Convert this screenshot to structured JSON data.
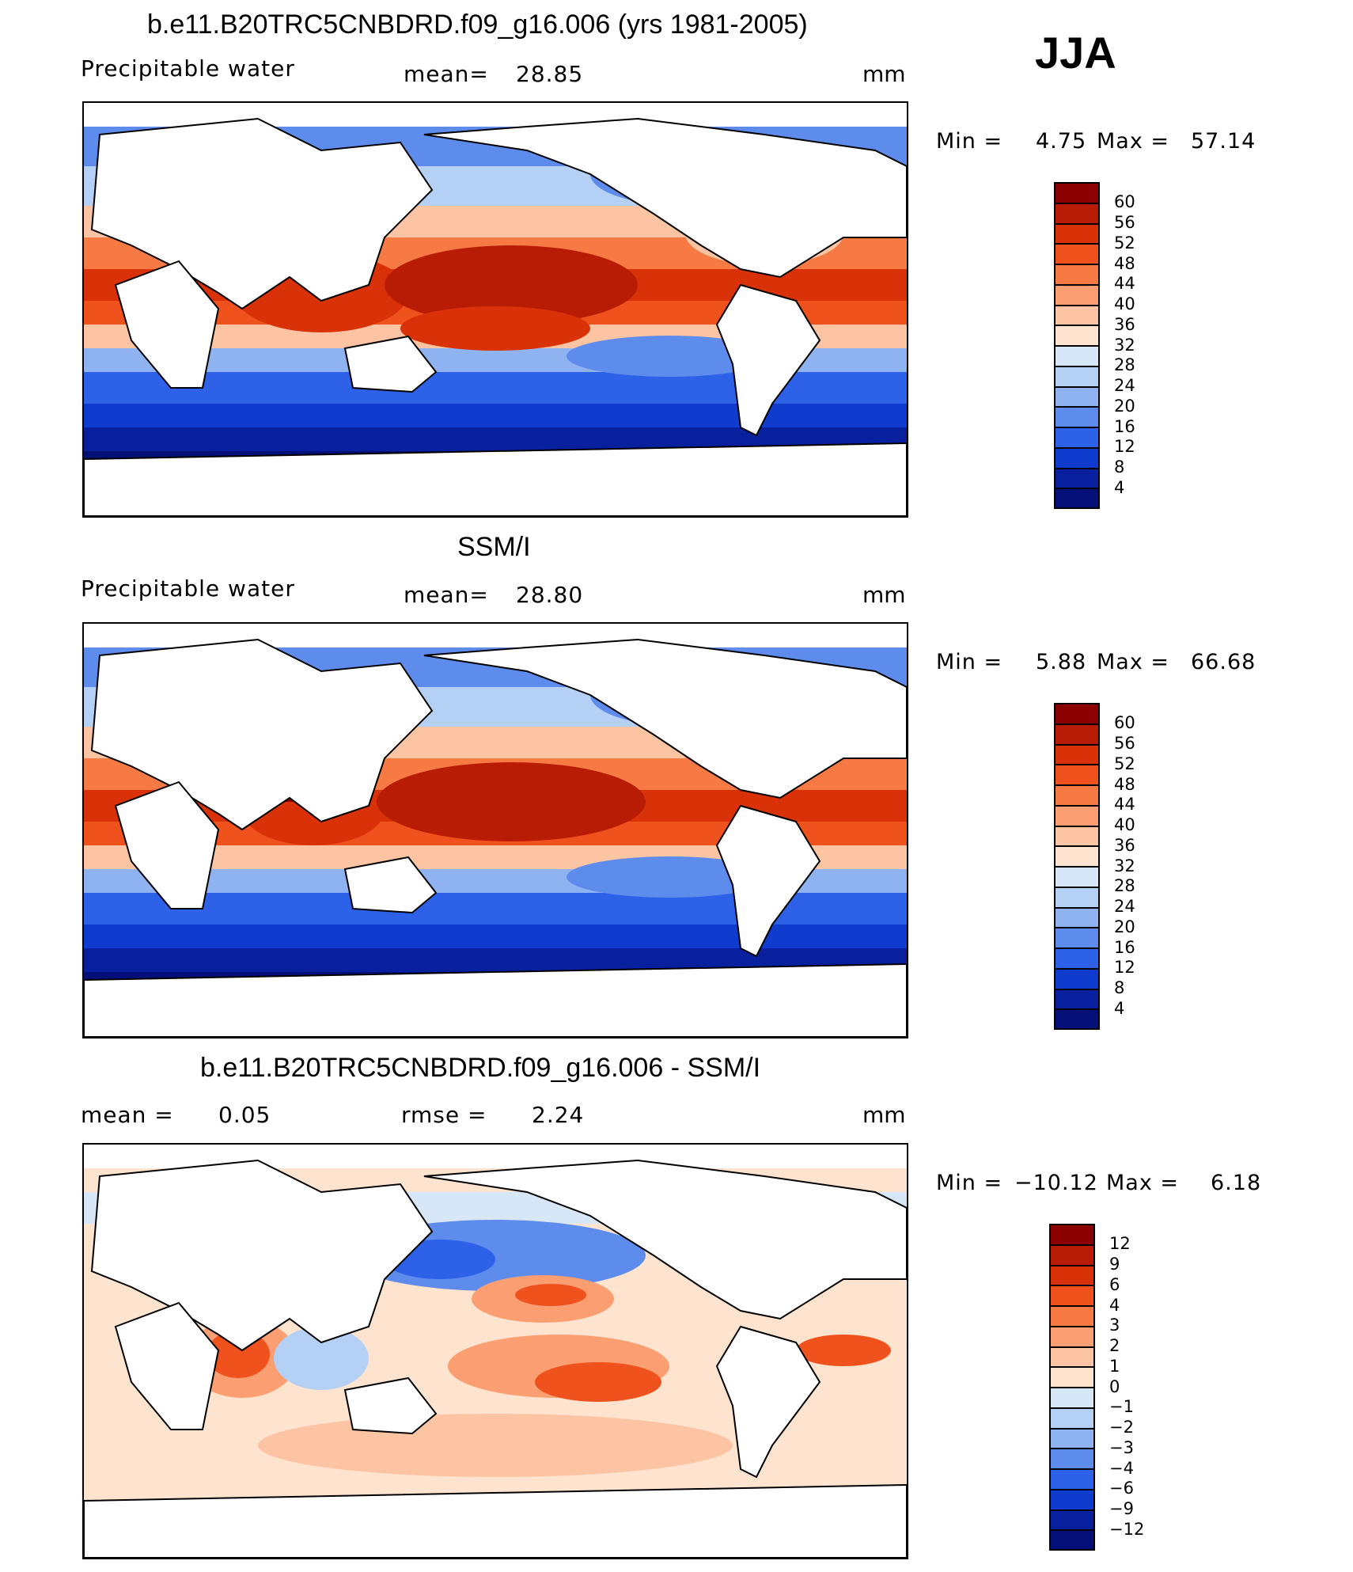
{
  "season": "JJA",
  "panels": [
    {
      "id": "model",
      "title": "b.e11.B20TRC5CNBDRD.f09_g16.006 (yrs 1981-2005)",
      "left_label": "Precipitable  water",
      "stat_label": "mean=",
      "stat_value": "28.85",
      "units": "mm",
      "min_label": "Min  =",
      "min_value": "4.75",
      "max_label": "Max  =",
      "max_value": "57.14",
      "levels": [
        "60",
        "56",
        "52",
        "48",
        "44",
        "40",
        "36",
        "32",
        "28",
        "24",
        "20",
        "16",
        "12",
        "8",
        "4"
      ],
      "colors": [
        "#8b0000",
        "#b81c05",
        "#d93208",
        "#f0521d",
        "#f77a45",
        "#fb9e72",
        "#fdc4a4",
        "#fee3cf",
        "#d7e7f8",
        "#b5d0f5",
        "#8fb2f0",
        "#5e8ced",
        "#2d62e8",
        "#0f3ccf",
        "#08209e",
        "#050f78"
      ]
    },
    {
      "id": "obs",
      "title": "SSM/I",
      "left_label": "Precipitable  water",
      "stat_label": "mean=",
      "stat_value": "28.80",
      "units": "mm",
      "min_label": "Min  =",
      "min_value": "5.88",
      "max_label": "Max  =",
      "max_value": "66.68",
      "levels": [
        "60",
        "56",
        "52",
        "48",
        "44",
        "40",
        "36",
        "32",
        "28",
        "24",
        "20",
        "16",
        "12",
        "8",
        "4"
      ],
      "colors": [
        "#8b0000",
        "#b81c05",
        "#d93208",
        "#f0521d",
        "#f77a45",
        "#fb9e72",
        "#fdc4a4",
        "#fee3cf",
        "#d7e7f8",
        "#b5d0f5",
        "#8fb2f0",
        "#5e8ced",
        "#2d62e8",
        "#0f3ccf",
        "#08209e",
        "#050f78"
      ]
    },
    {
      "id": "diff",
      "title": "b.e11.B20TRC5CNBDRD.f09_g16.006 - SSM/I",
      "left_label": "mean  =",
      "left_value": "0.05",
      "stat_label": "rmse  =",
      "stat_value": "2.24",
      "units": "mm",
      "min_label": "Min  =",
      "min_value": "−10.12",
      "max_label": "Max  =",
      "max_value": "6.18",
      "levels": [
        "12",
        "9",
        "6",
        "4",
        "3",
        "2",
        "1",
        "0",
        "−1",
        "−2",
        "−3",
        "−4",
        "−6",
        "−9",
        "−12"
      ],
      "colors": [
        "#8b0000",
        "#b81c05",
        "#d93208",
        "#f0521d",
        "#f77a45",
        "#fb9e72",
        "#fdc4a4",
        "#fee3cf",
        "#d7e7f8",
        "#b5d0f5",
        "#8fb2f0",
        "#5e8ced",
        "#2d62e8",
        "#0f3ccf",
        "#08209e",
        "#050f78"
      ]
    }
  ]
}
